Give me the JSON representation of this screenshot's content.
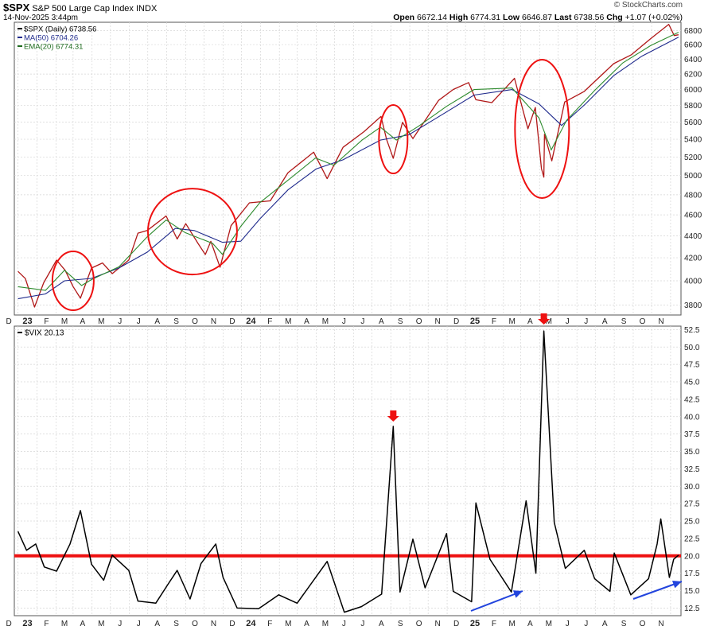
{
  "header": {
    "symbol": "$SPX",
    "name": "S&P 500 Large Cap Index",
    "exchange": "INDX",
    "date": "14-Nov-2025 3:44pm",
    "brand": "© StockCharts.com",
    "open_label": "Open",
    "open": "6672.14",
    "high_label": "High",
    "high": "6774.31",
    "low_label": "Low",
    "low": "6646.87",
    "last_label": "Last",
    "last": "6738.56",
    "chg_label": "Chg",
    "chg": "+1.07 (+0.02%)"
  },
  "legend_top": [
    {
      "text": "$SPX (Daily) 6738.56",
      "color": "#000000"
    },
    {
      "text": "MA(50) 6704.26",
      "color": "#1f2a8c"
    },
    {
      "text": "EMA(20) 6774.31",
      "color": "#1e6b1e"
    }
  ],
  "legend_bottom": {
    "text": "$VIX 20.13"
  },
  "colors": {
    "price": "#b01818",
    "ma50": "#1f2a8c",
    "ema20": "#2e8b2e",
    "vix": "#000000",
    "annotation": "#ee1111",
    "arrow_blue": "#2244dd"
  },
  "chart_data": [
    {
      "type": "line",
      "title": "$SPX",
      "x_tick_labels": [
        "D",
        "23",
        "F",
        "M",
        "A",
        "M",
        "J",
        "J",
        "A",
        "S",
        "O",
        "N",
        "D",
        "24",
        "F",
        "M",
        "A",
        "M",
        "J",
        "J",
        "A",
        "S",
        "O",
        "N",
        "D",
        "25",
        "F",
        "M",
        "A",
        "M",
        "J",
        "J",
        "A",
        "S",
        "O",
        "N"
      ],
      "y_ticks": [
        3800,
        4000,
        4200,
        4400,
        4600,
        4800,
        5000,
        5200,
        5400,
        5600,
        5800,
        6000,
        6200,
        6400,
        6600,
        6800
      ],
      "ylim": [
        3720,
        6920
      ],
      "scale": "log",
      "grid": true,
      "series": [
        {
          "name": "$SPX (Daily)",
          "values": [
            [
              "2022-12-01",
              4080
            ],
            [
              "2022-12-13",
              4019
            ],
            [
              "2022-12-28",
              3783
            ],
            [
              "2023-01-12",
              3983
            ],
            [
              "2023-02-02",
              4179
            ],
            [
              "2023-02-16",
              4090
            ],
            [
              "2023-03-01",
              3951
            ],
            [
              "2023-03-13",
              3855
            ],
            [
              "2023-03-31",
              4109
            ],
            [
              "2023-04-18",
              4154
            ],
            [
              "2023-05-04",
              4061
            ],
            [
              "2023-05-31",
              4180
            ],
            [
              "2023-06-15",
              4425
            ],
            [
              "2023-06-30",
              4450
            ],
            [
              "2023-07-31",
              4589
            ],
            [
              "2023-08-18",
              4370
            ],
            [
              "2023-09-01",
              4515
            ],
            [
              "2023-09-21",
              4330
            ],
            [
              "2023-10-03",
              4229
            ],
            [
              "2023-10-12",
              4349
            ],
            [
              "2023-10-27",
              4117
            ],
            [
              "2023-11-14",
              4496
            ],
            [
              "2023-12-14",
              4719
            ],
            [
              "2024-01-17",
              4739
            ],
            [
              "2024-02-15",
              5030
            ],
            [
              "2024-03-28",
              5254
            ],
            [
              "2024-04-19",
              4967
            ],
            [
              "2024-05-15",
              5308
            ],
            [
              "2024-06-18",
              5487
            ],
            [
              "2024-07-16",
              5667
            ],
            [
              "2024-07-25",
              5399
            ],
            [
              "2024-08-05",
              5186
            ],
            [
              "2024-08-20",
              5597
            ],
            [
              "2024-09-06",
              5408
            ],
            [
              "2024-10-18",
              5864
            ],
            [
              "2024-11-11",
              6001
            ],
            [
              "2024-12-06",
              6090
            ],
            [
              "2024-12-18",
              5872
            ],
            [
              "2025-01-13",
              5836
            ],
            [
              "2025-02-19",
              6144
            ],
            [
              "2025-03-13",
              5521
            ],
            [
              "2025-03-25",
              5776
            ],
            [
              "2025-04-04",
              5074
            ],
            [
              "2025-04-08",
              4983
            ],
            [
              "2025-04-09",
              5457
            ],
            [
              "2025-04-21",
              5158
            ],
            [
              "2025-05-12",
              5844
            ],
            [
              "2025-06-13",
              5977
            ],
            [
              "2025-07-31",
              6339
            ],
            [
              "2025-08-29",
              6460
            ],
            [
              "2025-09-30",
              6688
            ],
            [
              "2025-10-29",
              6890
            ],
            [
              "2025-11-07",
              6728
            ],
            [
              "2025-11-14",
              6739
            ]
          ]
        },
        {
          "name": "MA(50)",
          "values": [
            [
              "2022-12-01",
              3850
            ],
            [
              "2023-01-15",
              3890
            ],
            [
              "2023-02-15",
              4000
            ],
            [
              "2023-03-31",
              4020
            ],
            [
              "2023-05-15",
              4110
            ],
            [
              "2023-06-30",
              4250
            ],
            [
              "2023-08-15",
              4470
            ],
            [
              "2023-09-15",
              4450
            ],
            [
              "2023-10-31",
              4340
            ],
            [
              "2023-11-30",
              4350
            ],
            [
              "2023-12-31",
              4560
            ],
            [
              "2024-02-15",
              4850
            ],
            [
              "2024-04-01",
              5070
            ],
            [
              "2024-05-15",
              5170
            ],
            [
              "2024-07-15",
              5390
            ],
            [
              "2024-08-30",
              5450
            ],
            [
              "2024-10-15",
              5650
            ],
            [
              "2024-12-15",
              5930
            ],
            [
              "2025-02-15",
              6000
            ],
            [
              "2025-03-31",
              5820
            ],
            [
              "2025-05-07",
              5560
            ],
            [
              "2025-06-15",
              5820
            ],
            [
              "2025-07-31",
              6180
            ],
            [
              "2025-09-15",
              6440
            ],
            [
              "2025-11-14",
              6704
            ]
          ]
        },
        {
          "name": "EMA(20)",
          "values": [
            [
              "2022-12-01",
              3950
            ],
            [
              "2023-01-15",
              3920
            ],
            [
              "2023-02-15",
              4090
            ],
            [
              "2023-03-15",
              3960
            ],
            [
              "2023-03-31",
              4010
            ],
            [
              "2023-05-15",
              4120
            ],
            [
              "2023-06-30",
              4390
            ],
            [
              "2023-07-31",
              4550
            ],
            [
              "2023-08-31",
              4430
            ],
            [
              "2023-10-15",
              4330
            ],
            [
              "2023-10-31",
              4230
            ],
            [
              "2023-11-30",
              4490
            ],
            [
              "2023-12-31",
              4720
            ],
            [
              "2024-02-15",
              4950
            ],
            [
              "2024-03-31",
              5190
            ],
            [
              "2024-04-30",
              5110
            ],
            [
              "2024-06-15",
              5390
            ],
            [
              "2024-07-15",
              5540
            ],
            [
              "2024-08-10",
              5390
            ],
            [
              "2024-09-15",
              5550
            ],
            [
              "2024-10-31",
              5790
            ],
            [
              "2024-12-15",
              6000
            ],
            [
              "2025-02-15",
              6020
            ],
            [
              "2025-03-31",
              5650
            ],
            [
              "2025-04-20",
              5280
            ],
            [
              "2025-05-15",
              5620
            ],
            [
              "2025-06-30",
              5990
            ],
            [
              "2025-08-15",
              6350
            ],
            [
              "2025-09-30",
              6590
            ],
            [
              "2025-11-14",
              6774
            ]
          ]
        }
      ]
    },
    {
      "type": "line",
      "title": "$VIX",
      "x_tick_labels": [
        "D",
        "23",
        "F",
        "M",
        "A",
        "M",
        "J",
        "J",
        "A",
        "S",
        "O",
        "N",
        "D",
        "24",
        "F",
        "M",
        "A",
        "M",
        "J",
        "J",
        "A",
        "S",
        "O",
        "N",
        "D",
        "25",
        "F",
        "M",
        "A",
        "M",
        "J",
        "J",
        "A",
        "S",
        "O",
        "N"
      ],
      "y_ticks": [
        12.5,
        15.0,
        17.5,
        20.0,
        22.5,
        25.0,
        27.5,
        30.0,
        32.5,
        35.0,
        37.5,
        40.0,
        42.5,
        45.0,
        47.5,
        50.0,
        52.5
      ],
      "ylim": [
        11.4,
        53.0
      ],
      "grid": true,
      "horizontal_line": 20,
      "series": [
        {
          "name": "$VIX",
          "values": [
            [
              "2022-12-01",
              23.5
            ],
            [
              "2022-12-15",
              20.8
            ],
            [
              "2022-12-30",
              21.7
            ],
            [
              "2023-01-13",
              18.4
            ],
            [
              "2023-02-02",
              17.8
            ],
            [
              "2023-02-24",
              21.7
            ],
            [
              "2023-03-13",
              26.5
            ],
            [
              "2023-03-31",
              18.8
            ],
            [
              "2023-04-20",
              16.5
            ],
            [
              "2023-05-04",
              20.1
            ],
            [
              "2023-05-31",
              17.9
            ],
            [
              "2023-06-15",
              13.5
            ],
            [
              "2023-07-14",
              13.2
            ],
            [
              "2023-08-03",
              15.9
            ],
            [
              "2023-08-18",
              17.9
            ],
            [
              "2023-09-08",
              13.8
            ],
            [
              "2023-09-26",
              18.9
            ],
            [
              "2023-10-20",
              21.7
            ],
            [
              "2023-11-01",
              16.9
            ],
            [
              "2023-11-24",
              12.5
            ],
            [
              "2023-12-29",
              12.4
            ],
            [
              "2024-01-31",
              14.4
            ],
            [
              "2024-03-01",
              13.2
            ],
            [
              "2024-04-19",
              19.2
            ],
            [
              "2024-05-17",
              11.9
            ],
            [
              "2024-06-14",
              12.7
            ],
            [
              "2024-07-17",
              14.5
            ],
            [
              "2024-08-05",
              38.6
            ],
            [
              "2024-08-16",
              14.8
            ],
            [
              "2024-09-06",
              22.4
            ],
            [
              "2024-09-26",
              15.4
            ],
            [
              "2024-10-31",
              23.2
            ],
            [
              "2024-11-11",
              14.9
            ],
            [
              "2024-12-11",
              13.4
            ],
            [
              "2024-12-18",
              27.6
            ],
            [
              "2025-01-10",
              19.5
            ],
            [
              "2025-02-14",
              14.8
            ],
            [
              "2025-03-10",
              27.9
            ],
            [
              "2025-03-26",
              17.5
            ],
            [
              "2025-04-08",
              52.3
            ],
            [
              "2025-04-25",
              24.8
            ],
            [
              "2025-05-13",
              18.2
            ],
            [
              "2025-06-13",
              20.8
            ],
            [
              "2025-06-30",
              16.7
            ],
            [
              "2025-07-25",
              14.9
            ],
            [
              "2025-08-01",
              20.4
            ],
            [
              "2025-08-28",
              14.4
            ],
            [
              "2025-09-26",
              16.7
            ],
            [
              "2025-10-10",
              21.7
            ],
            [
              "2025-10-16",
              25.3
            ],
            [
              "2025-10-30",
              16.9
            ],
            [
              "2025-11-06",
              19.5
            ],
            [
              "2025-11-14",
              20.1
            ]
          ]
        }
      ]
    }
  ]
}
